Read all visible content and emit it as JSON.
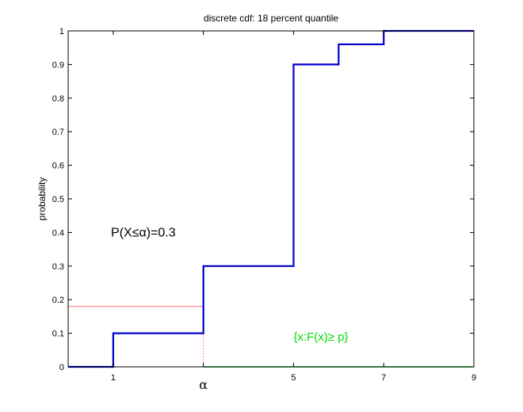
{
  "chart_data": {
    "type": "line",
    "title": "discrete cdf: 18 percent quantile",
    "xlabel": "",
    "ylabel": "probability",
    "xlim": [
      0,
      9
    ],
    "ylim": [
      0,
      1
    ],
    "grid": false,
    "x_ticks": [
      {
        "value": 1,
        "label": "1"
      },
      {
        "value": 3,
        "label": "α"
      },
      {
        "value": 5,
        "label": "5"
      },
      {
        "value": 7,
        "label": "7"
      },
      {
        "value": 9,
        "label": "9"
      }
    ],
    "y_ticks": [
      0,
      0.1,
      0.2,
      0.3,
      0.4,
      0.5,
      0.6,
      0.7,
      0.8,
      0.9,
      1
    ],
    "y_tick_labels": [
      "0",
      "0.1",
      "0.2",
      "0.3",
      "0.4",
      "0.5",
      "0.6",
      "0.7",
      "0.8",
      "0.9",
      "1"
    ],
    "series": [
      {
        "style": "step",
        "color": "#0000cc",
        "points": [
          [
            0,
            0
          ],
          [
            1,
            0
          ],
          [
            1,
            0.1
          ],
          [
            3,
            0.1
          ],
          [
            3,
            0.3
          ],
          [
            5,
            0.3
          ],
          [
            5,
            0.9
          ],
          [
            6,
            0.9
          ],
          [
            6,
            0.96
          ],
          [
            7,
            0.96
          ],
          [
            7,
            1
          ],
          [
            9,
            1
          ]
        ]
      }
    ],
    "quantile": {
      "p": 0.18,
      "alpha": 3,
      "hline_color": "#ff8080",
      "vline_color": "#ff8080",
      "set_line_color": "#00cc00",
      "set_range": [
        3,
        9
      ]
    },
    "annotations": [
      {
        "text": "P(X≤α)=0.3",
        "x": 0.95,
        "y": 0.4,
        "color": "#000000"
      },
      {
        "text": "{x:F(x)≥ p}",
        "x": 5,
        "y": 0.09,
        "color": "#00dd00"
      }
    ]
  }
}
